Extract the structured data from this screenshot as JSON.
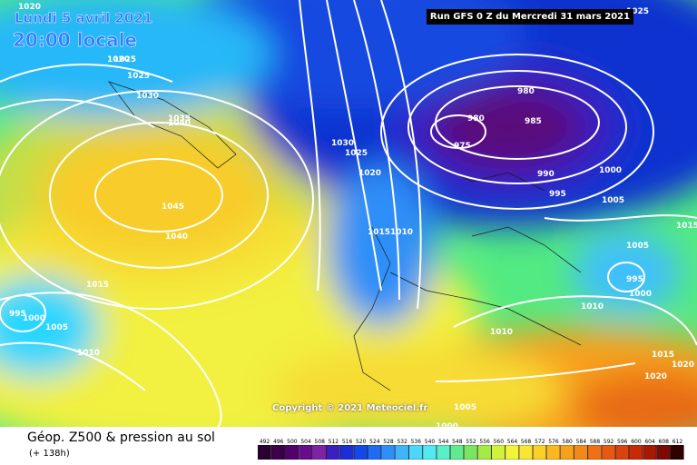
{
  "header": {
    "date_label": "Lundi 5 avril 2021",
    "time_label": "20:00 locale",
    "run_label": "Run GFS 0 Z du Mercredi 31 mars 2021"
  },
  "map": {
    "copyright": "Copyright © 2021 Meteociel.fr",
    "pressure_labels": [
      "1020",
      "1025",
      "1020",
      "1025",
      "1030",
      "1035",
      "1040",
      "1045",
      "1040",
      "1030",
      "1025",
      "1020",
      "1015",
      "1010",
      "1015",
      "995",
      "1000",
      "1005",
      "1010",
      "980",
      "980",
      "975",
      "985",
      "990",
      "1000",
      "995",
      "1005",
      "1015",
      "1005",
      "995",
      "1000",
      "1010",
      "1010",
      "1015",
      "1020",
      "1020",
      "1005",
      "1000",
      "1025"
    ],
    "colors": {
      "deep_violet": "#4b0a5c",
      "dark_blue": "#0018b8",
      "blue": "#0c4ce0",
      "cyan": "#2ad6ff",
      "green": "#5ee07a",
      "yellow": "#f8f03c",
      "orange": "#f8a51e",
      "isobar": "#ffffff"
    }
  },
  "footer": {
    "title": "Géop. Z500 & pression au sol",
    "subtitle": "(+ 138h)",
    "scale_values": [
      "492",
      "496",
      "500",
      "504",
      "508",
      "512",
      "516",
      "520",
      "524",
      "528",
      "532",
      "536",
      "540",
      "544",
      "548",
      "552",
      "556",
      "560",
      "564",
      "568",
      "572",
      "576",
      "580",
      "584",
      "588",
      "592",
      "596",
      "600",
      "604",
      "608",
      "612"
    ],
    "scale_colors": [
      "#2a0033",
      "#3c0048",
      "#52006a",
      "#6a0a8c",
      "#7e22a6",
      "#3b1fc0",
      "#1c2ed4",
      "#1448e8",
      "#1e6cf4",
      "#2f8ff8",
      "#3fb4fb",
      "#4cd6fb",
      "#52eaf2",
      "#58f0c4",
      "#60ec8e",
      "#7ae660",
      "#a4ec44",
      "#cff23a",
      "#f2f43a",
      "#f8e632",
      "#fbd028",
      "#fbb820",
      "#f8a01c",
      "#f48818",
      "#f07014",
      "#e85810",
      "#dc420c",
      "#c82a08",
      "#a81806",
      "#7c0a04",
      "#300000"
    ]
  }
}
